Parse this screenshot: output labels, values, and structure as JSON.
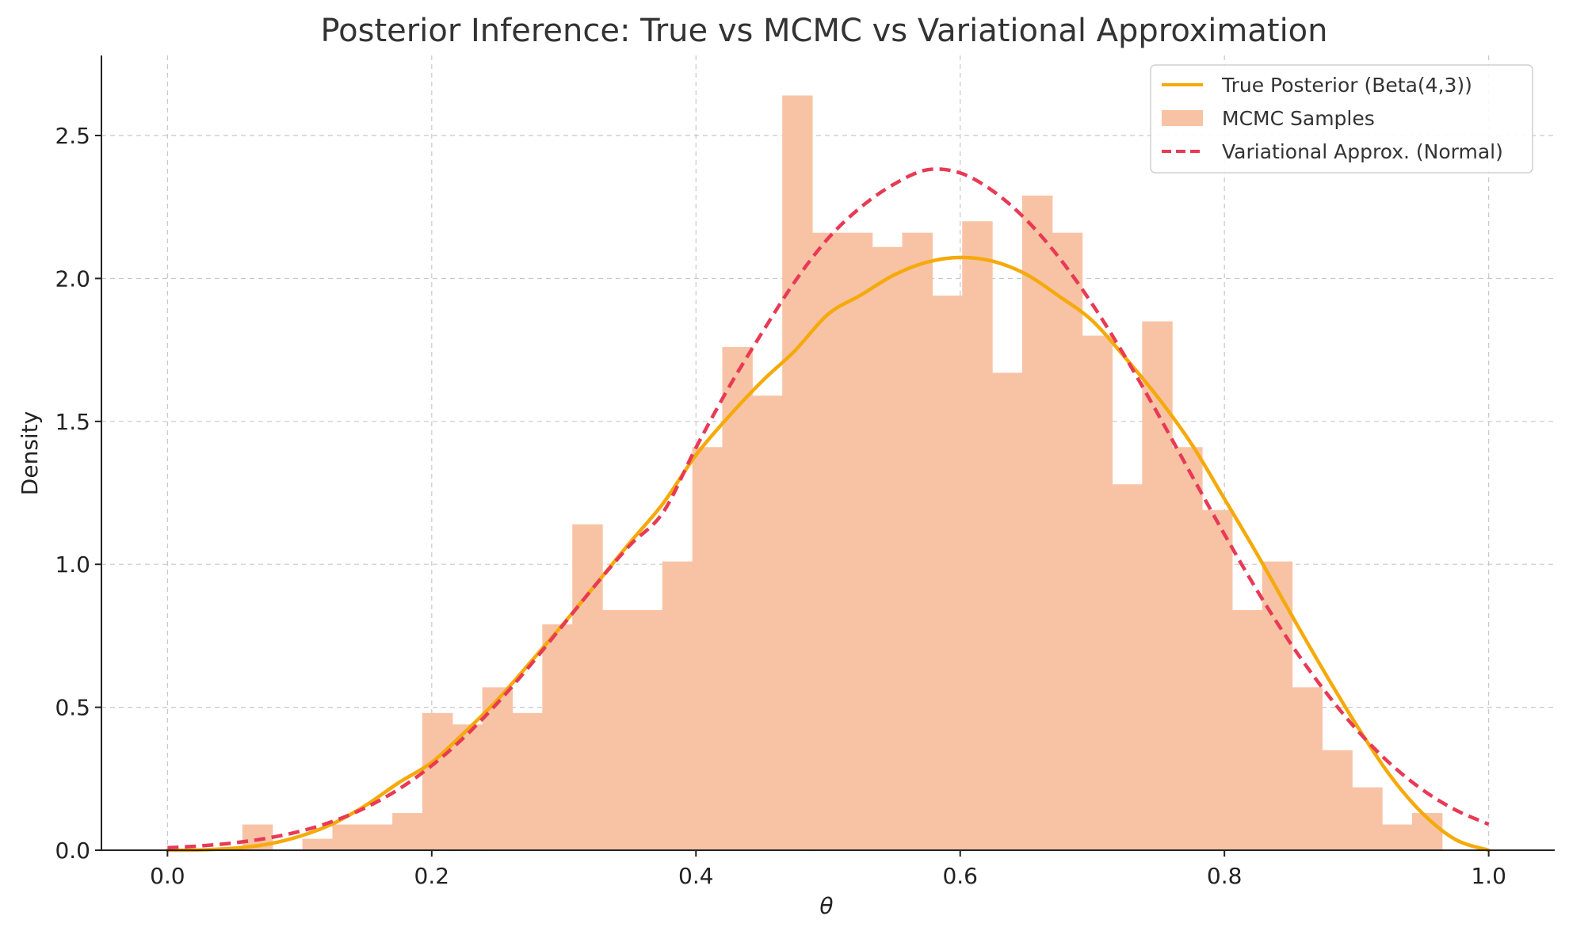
{
  "chart_data": {
    "type": "histogram",
    "title": "Posterior Inference: True vs MCMC vs Variational Approximation",
    "xlabel": "θ",
    "ylabel": "Density",
    "xlim": [
      -0.05,
      1.05
    ],
    "ylim": [
      0,
      2.78
    ],
    "xticks": [
      "0.0",
      "0.2",
      "0.4",
      "0.6",
      "0.8",
      "1.0"
    ],
    "yticks": [
      "0.0",
      "0.5",
      "1.0",
      "1.5",
      "2.0",
      "2.5"
    ],
    "grid": true,
    "legend_position": "top-right",
    "colors": {
      "true_posterior": "#f5aa0a",
      "mcmc": "#f8c3a5",
      "variational": "#e83a55"
    },
    "histogram": {
      "name": "MCMC Samples",
      "bin_edges": [
        0.0113,
        0.034,
        0.0567,
        0.0794,
        0.1021,
        0.1248,
        0.1475,
        0.1702,
        0.1929,
        0.2156,
        0.2383,
        0.261,
        0.2837,
        0.3064,
        0.3291,
        0.3518,
        0.3745,
        0.3972,
        0.4199,
        0.4426,
        0.4653,
        0.488,
        0.5107,
        0.5334,
        0.5561,
        0.5788,
        0.6015,
        0.6242,
        0.6469,
        0.6696,
        0.6923,
        0.715,
        0.7377,
        0.7604,
        0.7831,
        0.8058,
        0.8285,
        0.8512,
        0.8739,
        0.8966,
        0.9193,
        0.942,
        0.9647,
        0.9874
      ],
      "densities": [
        0,
        0,
        0.09,
        0,
        0.04,
        0.09,
        0.09,
        0.13,
        0.48,
        0.44,
        0.57,
        0.48,
        0.79,
        1.14,
        0.84,
        0.84,
        1.01,
        1.41,
        1.76,
        1.59,
        2.64,
        2.16,
        2.16,
        2.11,
        2.16,
        1.94,
        2.2,
        1.67,
        2.29,
        2.16,
        1.8,
        1.28,
        1.85,
        1.41,
        1.19,
        0.84,
        1.01,
        0.57,
        0.35,
        0.22,
        0.09,
        0.13,
        0
      ]
    },
    "series": [
      {
        "name": "True Posterior (Beta(4,3))",
        "style": "solid",
        "x": [
          0.0,
          0.025,
          0.05,
          0.075,
          0.1,
          0.125,
          0.15,
          0.175,
          0.2,
          0.225,
          0.25,
          0.275,
          0.3,
          0.325,
          0.35,
          0.375,
          0.4,
          0.425,
          0.45,
          0.475,
          0.5,
          0.525,
          0.55,
          0.575,
          0.6,
          0.625,
          0.65,
          0.675,
          0.7,
          0.725,
          0.75,
          0.775,
          0.8,
          0.825,
          0.85,
          0.875,
          0.9,
          0.925,
          0.95,
          0.975,
          1.0
        ],
        "y": [
          0.0,
          0.0011,
          0.0068,
          0.0205,
          0.0486,
          0.0923,
          0.1567,
          0.2361,
          0.3072,
          0.4128,
          0.5273,
          0.659,
          0.7938,
          0.9343,
          1.0759,
          1.2124,
          1.3824,
          1.518,
          1.6404,
          1.7478,
          1.875,
          1.9425,
          2.0124,
          2.0571,
          2.0736,
          2.0599,
          2.0144,
          1.9373,
          1.8522,
          1.7223,
          1.582,
          1.4215,
          1.2288,
          1.0336,
          0.829,
          0.6284,
          0.4374,
          0.2638,
          0.1286,
          0.0371,
          0.0
        ]
      },
      {
        "name": "Variational Approx. (Normal)",
        "style": "dashed",
        "x": [
          0.0,
          0.025,
          0.05,
          0.075,
          0.1,
          0.125,
          0.15,
          0.175,
          0.2,
          0.225,
          0.25,
          0.275,
          0.3,
          0.325,
          0.35,
          0.375,
          0.4,
          0.425,
          0.45,
          0.475,
          0.5,
          0.525,
          0.55,
          0.575,
          0.6,
          0.625,
          0.65,
          0.675,
          0.7,
          0.725,
          0.75,
          0.775,
          0.8,
          0.825,
          0.85,
          0.875,
          0.9,
          0.925,
          0.95,
          0.975,
          1.0
        ],
        "y": [
          0.0086,
          0.0151,
          0.0255,
          0.0417,
          0.0658,
          0.1007,
          0.149,
          0.2135,
          0.2959,
          0.3971,
          0.5161,
          0.6493,
          0.7912,
          0.9335,
          1.0667,
          1.1809,
          1.408,
          1.62,
          1.81,
          1.99,
          2.14,
          2.25,
          2.33,
          2.38,
          2.369,
          2.305,
          2.205,
          2.072,
          1.91,
          1.725,
          1.523,
          1.313,
          1.105,
          0.9064,
          0.7238,
          0.563,
          0.422,
          0.3047,
          0.2112,
          0.1407,
          0.091
        ]
      }
    ]
  }
}
